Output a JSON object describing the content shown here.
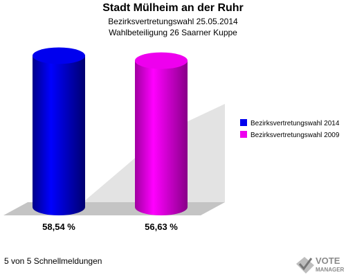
{
  "header": {
    "title": "Stadt Mülheim an der Ruhr",
    "subtitle_1": "Bezirksvertretungswahl 25.05.2014",
    "subtitle_2": "Wahlbeteiligung 26 Saarner Kuppe"
  },
  "chart_data": {
    "type": "bar",
    "style": "3d-cylinder",
    "categories": [
      "Bezirksvertretungswahl 2014",
      "Bezirksvertretungswahl 2009"
    ],
    "values": [
      58.54,
      56.63
    ],
    "value_labels": [
      "58,54 %",
      "56,63 %"
    ],
    "colors": [
      "#0000ee",
      "#ee00ee"
    ],
    "ylim": [
      0,
      60
    ],
    "grid": false,
    "legend": {
      "position": "right",
      "entries": [
        "Bezirksvertretungswahl 2014",
        "Bezirksvertretungswahl 2009"
      ]
    }
  },
  "footer": {
    "status_text": "5 von 5 Schnellmeldungen"
  },
  "logo": {
    "line1": "VOTE",
    "line2": "MANAGER",
    "icon": "checkmark-ballot-icon"
  }
}
